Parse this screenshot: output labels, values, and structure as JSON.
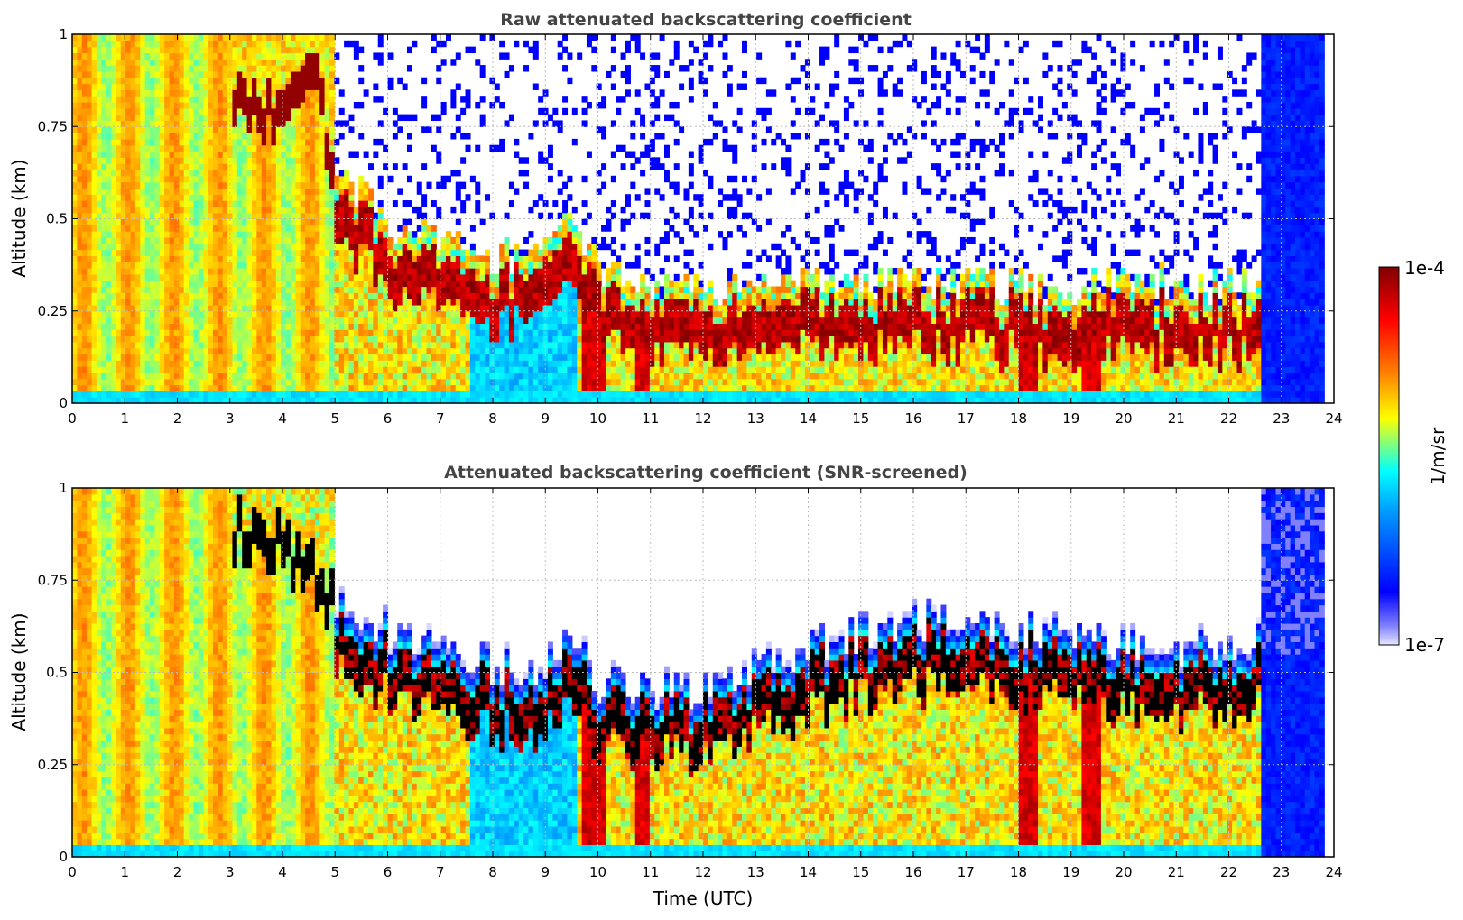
{
  "chart_data": [
    {
      "type": "heatmap",
      "title": "Raw attenuated backscattering coefficient",
      "xlabel": "",
      "ylabel": "Altitude (km)",
      "xlim": [
        0,
        24
      ],
      "ylim": [
        0,
        1
      ],
      "x_ticks": [
        "0",
        "1",
        "2",
        "3",
        "4",
        "5",
        "6",
        "7",
        "8",
        "9",
        "10",
        "11",
        "12",
        "13",
        "14",
        "15",
        "16",
        "17",
        "18",
        "19",
        "20",
        "21",
        "22",
        "23",
        "24"
      ],
      "y_ticks": [
        "0",
        "0.25",
        "0.5",
        "0.75",
        "1"
      ],
      "grid": true,
      "color_scale": "log jet",
      "screened": false,
      "features": {
        "boundary_layer_top_km": {
          "time_utc": [
            0,
            2,
            3,
            3.5,
            4,
            4.5,
            5,
            5.5,
            6,
            7,
            8,
            9,
            9.5,
            10,
            11,
            12,
            13,
            14,
            15,
            16,
            17,
            18,
            19,
            20,
            21,
            22,
            22.6
          ],
          "altitude_km": [
            1.0,
            1.0,
            0.85,
            0.78,
            0.78,
            0.95,
            0.62,
            0.55,
            0.45,
            0.42,
            0.38,
            0.38,
            0.5,
            0.35,
            0.3,
            0.3,
            0.3,
            0.32,
            0.3,
            0.3,
            0.3,
            0.3,
            0.3,
            0.3,
            0.3,
            0.3,
            0.28
          ]
        }
      }
    },
    {
      "type": "heatmap",
      "title": "Attenuated backscattering coefficient (SNR-screened)",
      "xlabel": "Time (UTC)",
      "ylabel": "Altitude (km)",
      "xlim": [
        0,
        24
      ],
      "ylim": [
        0,
        1
      ],
      "x_ticks": [
        "0",
        "1",
        "2",
        "3",
        "4",
        "5",
        "6",
        "7",
        "8",
        "9",
        "10",
        "11",
        "12",
        "13",
        "14",
        "15",
        "16",
        "17",
        "18",
        "19",
        "20",
        "21",
        "22",
        "23",
        "24"
      ],
      "y_ticks": [
        "0",
        "0.25",
        "0.5",
        "0.75",
        "1"
      ],
      "grid": true,
      "color_scale": "log jet",
      "screened": true,
      "features": {
        "signal_top_km": {
          "time_utc": [
            0,
            2,
            3,
            4,
            5,
            5.5,
            6,
            7,
            8,
            9,
            9.5,
            10,
            11,
            12,
            13,
            14,
            15,
            16,
            17,
            18,
            19,
            20,
            21,
            22,
            22.6
          ],
          "altitude_km": [
            1.0,
            1.0,
            0.9,
            0.85,
            0.7,
            0.6,
            0.6,
            0.55,
            0.5,
            0.5,
            0.6,
            0.45,
            0.45,
            0.42,
            0.5,
            0.55,
            0.6,
            0.62,
            0.65,
            0.6,
            0.58,
            0.55,
            0.55,
            0.55,
            0.6
          ]
        }
      }
    }
  ],
  "colorbar": {
    "label": "1/m/sr",
    "max_label": "1e-4",
    "min_label": "1e-7",
    "range": [
      1e-07,
      0.0001
    ],
    "scale": "log",
    "colors": [
      "#e6e6ff",
      "#0000ff",
      "#00a0ff",
      "#00ffff",
      "#ffff00",
      "#ff8000",
      "#ff0000",
      "#800000"
    ]
  }
}
